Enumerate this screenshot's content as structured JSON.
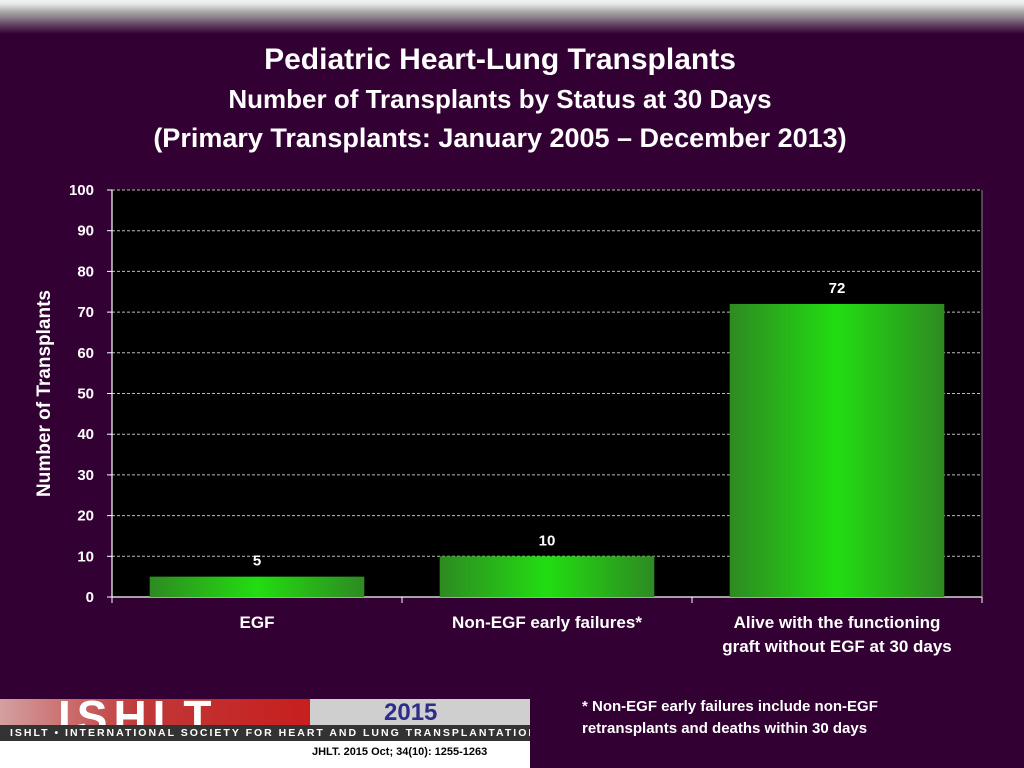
{
  "title": {
    "line1": "Pediatric Heart-Lung Transplants",
    "line2": "Number of Transplants by Status at 30 Days",
    "line3": "(Primary Transplants: January 2005 – December 2013)"
  },
  "chart_data": {
    "type": "bar",
    "categories": [
      [
        "EGF"
      ],
      [
        "Non-EGF early failures*"
      ],
      [
        "Alive with the functioning",
        "graft without EGF at 30 days"
      ]
    ],
    "values": [
      5,
      10,
      72
    ],
    "data_labels": [
      "5",
      "10",
      "72"
    ],
    "ylabel": "Number of Transplants",
    "ylim": [
      0,
      100
    ],
    "yticks": [
      0,
      10,
      20,
      30,
      40,
      50,
      60,
      70,
      80,
      90,
      100
    ],
    "grid": true,
    "colors": {
      "bar": "#22dd11",
      "bar_dark": "#2e8a22",
      "plot_bg": "#000000",
      "text": "#ffffff"
    }
  },
  "footnote": {
    "line1": "* Non-EGF early failures include non-EGF",
    "line2": "retransplants and deaths within 30 days"
  },
  "logo": {
    "letters": "ISHLT",
    "year": "2015",
    "org_name": "ISHLT • INTERNATIONAL SOCIETY FOR HEART AND LUNG TRANSPLANTATION",
    "citation": "JHLT. 2015 Oct; 34(10): 1255-1263"
  }
}
